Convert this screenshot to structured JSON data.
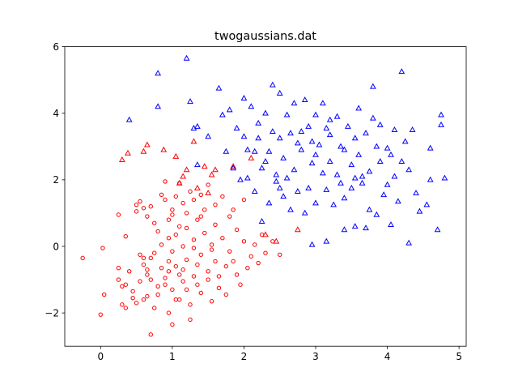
{
  "chart_data": {
    "type": "scatter",
    "title": "twogaussians.dat",
    "xlabel": "",
    "ylabel": "",
    "xlim": [
      -0.5,
      5.1
    ],
    "ylim": [
      -3.0,
      6.0
    ],
    "xticks": [
      0,
      1,
      2,
      3,
      4,
      5
    ],
    "yticks": [
      -2,
      0,
      2,
      4,
      6
    ],
    "xtick_labels": [
      "0",
      "1",
      "2",
      "3",
      "4",
      "5"
    ],
    "ytick_labels": [
      "−2",
      "0",
      "2",
      "4",
      "6"
    ],
    "grid": false,
    "series": [
      {
        "marker": "circle",
        "color": "#ff0000",
        "points": [
          [
            -0.25,
            -0.35
          ],
          [
            0.0,
            -2.05
          ],
          [
            0.03,
            -0.05
          ],
          [
            0.05,
            -1.45
          ],
          [
            0.25,
            -0.65
          ],
          [
            0.25,
            -1.0
          ],
          [
            0.25,
            0.95
          ],
          [
            0.3,
            -1.2
          ],
          [
            0.3,
            -1.75
          ],
          [
            0.35,
            -1.85
          ],
          [
            0.35,
            -1.15
          ],
          [
            0.35,
            0.3
          ],
          [
            0.4,
            -0.75
          ],
          [
            0.45,
            -1.35
          ],
          [
            0.45,
            -1.55
          ],
          [
            0.5,
            1.05
          ],
          [
            0.5,
            1.25
          ],
          [
            0.55,
            -1.05
          ],
          [
            0.55,
            -0.25
          ],
          [
            0.55,
            1.35
          ],
          [
            0.6,
            -0.35
          ],
          [
            0.6,
            -0.55
          ],
          [
            0.6,
            1.15
          ],
          [
            0.6,
            -1.6
          ],
          [
            0.65,
            -1.5
          ],
          [
            0.65,
            -0.7
          ],
          [
            0.65,
            -0.85
          ],
          [
            0.65,
            0.9
          ],
          [
            0.7,
            -1.0
          ],
          [
            0.7,
            -0.35
          ],
          [
            0.7,
            1.2
          ],
          [
            0.7,
            -2.65
          ],
          [
            0.75,
            -1.85
          ],
          [
            0.75,
            0.7
          ],
          [
            0.8,
            -1.45
          ],
          [
            0.8,
            0.45
          ],
          [
            0.85,
            0.05
          ],
          [
            0.85,
            1.55
          ],
          [
            0.85,
            -0.65
          ],
          [
            0.9,
            -1.15
          ],
          [
            0.9,
            -0.95
          ],
          [
            0.9,
            1.4
          ],
          [
            0.9,
            1.95
          ],
          [
            0.95,
            -0.45
          ],
          [
            0.95,
            -2.0
          ],
          [
            0.95,
            0.25
          ],
          [
            0.95,
            0.8
          ],
          [
            1.0,
            -1.3
          ],
          [
            1.0,
            -0.15
          ],
          [
            1.0,
            1.1
          ],
          [
            1.0,
            -2.35
          ],
          [
            1.05,
            -0.6
          ],
          [
            1.05,
            0.35
          ],
          [
            1.05,
            1.5
          ],
          [
            1.05,
            -1.6
          ],
          [
            1.1,
            -0.85
          ],
          [
            1.1,
            0.6
          ],
          [
            1.1,
            1.9
          ],
          [
            1.15,
            -1.05
          ],
          [
            1.15,
            -0.7
          ],
          [
            1.15,
            0.0
          ],
          [
            1.15,
            1.3
          ],
          [
            1.2,
            -1.3
          ],
          [
            1.2,
            0.55
          ],
          [
            1.2,
            1.0
          ],
          [
            1.2,
            -0.4
          ],
          [
            1.25,
            -1.75
          ],
          [
            1.25,
            1.65
          ],
          [
            1.25,
            -2.2
          ],
          [
            1.3,
            -0.9
          ],
          [
            1.3,
            0.2
          ],
          [
            1.3,
            1.4
          ],
          [
            1.35,
            -1.15
          ],
          [
            1.35,
            -0.55
          ],
          [
            1.35,
            0.8
          ],
          [
            1.4,
            -0.25
          ],
          [
            1.4,
            1.55
          ],
          [
            1.4,
            -1.4
          ],
          [
            1.45,
            0.4
          ],
          [
            1.45,
            1.1
          ],
          [
            1.5,
            -0.75
          ],
          [
            1.5,
            -1.0
          ],
          [
            1.5,
            1.85
          ],
          [
            1.55,
            0.05
          ],
          [
            1.55,
            -1.65
          ],
          [
            1.6,
            -0.45
          ],
          [
            1.6,
            0.65
          ],
          [
            1.6,
            1.25
          ],
          [
            1.65,
            -1.25
          ],
          [
            1.65,
            -0.9
          ],
          [
            1.7,
            0.25
          ],
          [
            1.7,
            1.5
          ],
          [
            1.75,
            -0.6
          ],
          [
            1.75,
            -1.45
          ],
          [
            1.8,
            0.9
          ],
          [
            1.8,
            -0.15
          ],
          [
            1.85,
            -0.45
          ],
          [
            1.85,
            1.1
          ],
          [
            1.9,
            -0.85
          ],
          [
            1.9,
            0.5
          ],
          [
            1.95,
            -1.15
          ],
          [
            2.0,
            0.15
          ],
          [
            2.0,
            1.4
          ],
          [
            2.05,
            -0.65
          ],
          [
            2.1,
            -0.3
          ],
          [
            2.15,
            0.05
          ],
          [
            2.2,
            -0.5
          ],
          [
            2.25,
            0.35
          ],
          [
            2.3,
            -0.2
          ],
          [
            2.4,
            0.15
          ],
          [
            2.5,
            -0.25
          ],
          [
            0.5,
            -1.7
          ],
          [
            0.75,
            -0.2
          ],
          [
            1.0,
            0.95
          ],
          [
            1.3,
            -0.05
          ],
          [
            1.55,
            -0.1
          ],
          [
            1.1,
            -1.6
          ],
          [
            0.8,
            -1.2
          ],
          [
            1.4,
            0.9
          ],
          [
            0.95,
            -0.75
          ]
        ]
      },
      {
        "marker": "triangle",
        "color": "#ff0000",
        "points": [
          [
            0.3,
            2.6
          ],
          [
            0.38,
            2.8
          ],
          [
            0.6,
            2.85
          ],
          [
            0.65,
            3.05
          ],
          [
            0.88,
            2.9
          ],
          [
            1.05,
            2.7
          ],
          [
            1.15,
            2.1
          ],
          [
            1.2,
            2.3
          ],
          [
            1.3,
            3.15
          ],
          [
            1.35,
            1.75
          ],
          [
            1.45,
            2.4
          ],
          [
            1.55,
            2.15
          ],
          [
            1.6,
            2.3
          ],
          [
            1.85,
            2.4
          ],
          [
            2.1,
            2.65
          ],
          [
            2.3,
            0.35
          ],
          [
            2.45,
            0.15
          ],
          [
            2.75,
            0.5
          ],
          [
            1.1,
            1.9
          ],
          [
            1.5,
            1.6
          ]
        ]
      },
      {
        "marker": "triangle",
        "color": "#0000ff",
        "points": [
          [
            0.4,
            3.8
          ],
          [
            0.8,
            5.2
          ],
          [
            0.8,
            4.2
          ],
          [
            1.2,
            5.65
          ],
          [
            1.25,
            4.35
          ],
          [
            1.3,
            3.55
          ],
          [
            1.35,
            3.6
          ],
          [
            1.35,
            2.45
          ],
          [
            1.5,
            3.3
          ],
          [
            1.65,
            4.75
          ],
          [
            1.7,
            3.95
          ],
          [
            1.75,
            2.85
          ],
          [
            1.8,
            4.1
          ],
          [
            1.85,
            2.35
          ],
          [
            1.9,
            3.55
          ],
          [
            1.95,
            2.0
          ],
          [
            2.0,
            3.3
          ],
          [
            2.0,
            4.45
          ],
          [
            2.05,
            2.9
          ],
          [
            2.1,
            4.2
          ],
          [
            2.15,
            1.65
          ],
          [
            2.15,
            2.85
          ],
          [
            2.2,
            3.7
          ],
          [
            2.25,
            0.75
          ],
          [
            2.25,
            2.35
          ],
          [
            2.3,
            4.0
          ],
          [
            2.35,
            1.3
          ],
          [
            2.35,
            2.85
          ],
          [
            2.4,
            3.45
          ],
          [
            2.4,
            4.85
          ],
          [
            2.45,
            1.95
          ],
          [
            2.5,
            3.25
          ],
          [
            2.5,
            4.6
          ],
          [
            2.55,
            1.5
          ],
          [
            2.55,
            2.65
          ],
          [
            2.6,
            3.95
          ],
          [
            2.65,
            1.1
          ],
          [
            2.65,
            3.4
          ],
          [
            2.7,
            2.3
          ],
          [
            2.7,
            4.3
          ],
          [
            2.75,
            1.65
          ],
          [
            2.75,
            3.1
          ],
          [
            2.8,
            2.9
          ],
          [
            2.85,
            1.0
          ],
          [
            2.85,
            4.4
          ],
          [
            2.9,
            1.75
          ],
          [
            2.9,
            3.6
          ],
          [
            2.95,
            0.05
          ],
          [
            2.95,
            2.5
          ],
          [
            3.0,
            3.95
          ],
          [
            3.0,
            1.3
          ],
          [
            3.05,
            3.05
          ],
          [
            3.1,
            2.2
          ],
          [
            3.1,
            4.3
          ],
          [
            3.15,
            1.7
          ],
          [
            3.15,
            0.15
          ],
          [
            3.2,
            3.35
          ],
          [
            3.2,
            2.55
          ],
          [
            3.25,
            1.25
          ],
          [
            3.3,
            3.9
          ],
          [
            3.3,
            2.15
          ],
          [
            3.35,
            3.0
          ],
          [
            3.4,
            0.5
          ],
          [
            3.4,
            1.45
          ],
          [
            3.45,
            3.6
          ],
          [
            3.5,
            2.45
          ],
          [
            3.5,
            1.75
          ],
          [
            3.55,
            3.25
          ],
          [
            3.55,
            0.6
          ],
          [
            3.6,
            2.75
          ],
          [
            3.6,
            4.15
          ],
          [
            3.65,
            1.9
          ],
          [
            3.7,
            3.4
          ],
          [
            3.75,
            1.1
          ],
          [
            3.75,
            2.25
          ],
          [
            3.8,
            4.8
          ],
          [
            3.85,
            3.0
          ],
          [
            3.85,
            0.95
          ],
          [
            3.9,
            3.65
          ],
          [
            3.9,
            2.55
          ],
          [
            3.95,
            1.55
          ],
          [
            4.0,
            2.95
          ],
          [
            4.05,
            0.65
          ],
          [
            4.1,
            3.5
          ],
          [
            4.1,
            2.1
          ],
          [
            4.15,
            1.35
          ],
          [
            4.2,
            5.25
          ],
          [
            4.2,
            2.55
          ],
          [
            4.25,
            3.15
          ],
          [
            4.3,
            0.1
          ],
          [
            4.35,
            3.5
          ],
          [
            4.4,
            1.6
          ],
          [
            4.45,
            1.05
          ],
          [
            4.55,
            1.25
          ],
          [
            4.6,
            2.95
          ],
          [
            4.7,
            0.5
          ],
          [
            4.75,
            3.65
          ],
          [
            4.8,
            2.05
          ],
          [
            4.75,
            3.95
          ],
          [
            4.6,
            2.0
          ],
          [
            3.2,
            3.8
          ],
          [
            2.6,
            2.05
          ],
          [
            3.0,
            2.75
          ],
          [
            3.4,
            2.9
          ],
          [
            3.8,
            3.85
          ],
          [
            2.3,
            2.55
          ],
          [
            2.8,
            3.45
          ],
          [
            3.65,
            2.1
          ],
          [
            4.0,
            1.85
          ],
          [
            2.95,
            3.15
          ],
          [
            2.2,
            3.25
          ],
          [
            2.45,
            2.15
          ],
          [
            3.35,
            1.9
          ],
          [
            3.7,
            0.55
          ],
          [
            4.3,
            2.3
          ],
          [
            2.05,
            2.05
          ],
          [
            2.5,
            1.75
          ],
          [
            3.15,
            3.55
          ],
          [
            3.55,
            2.05
          ],
          [
            4.05,
            2.75
          ]
        ]
      }
    ]
  }
}
